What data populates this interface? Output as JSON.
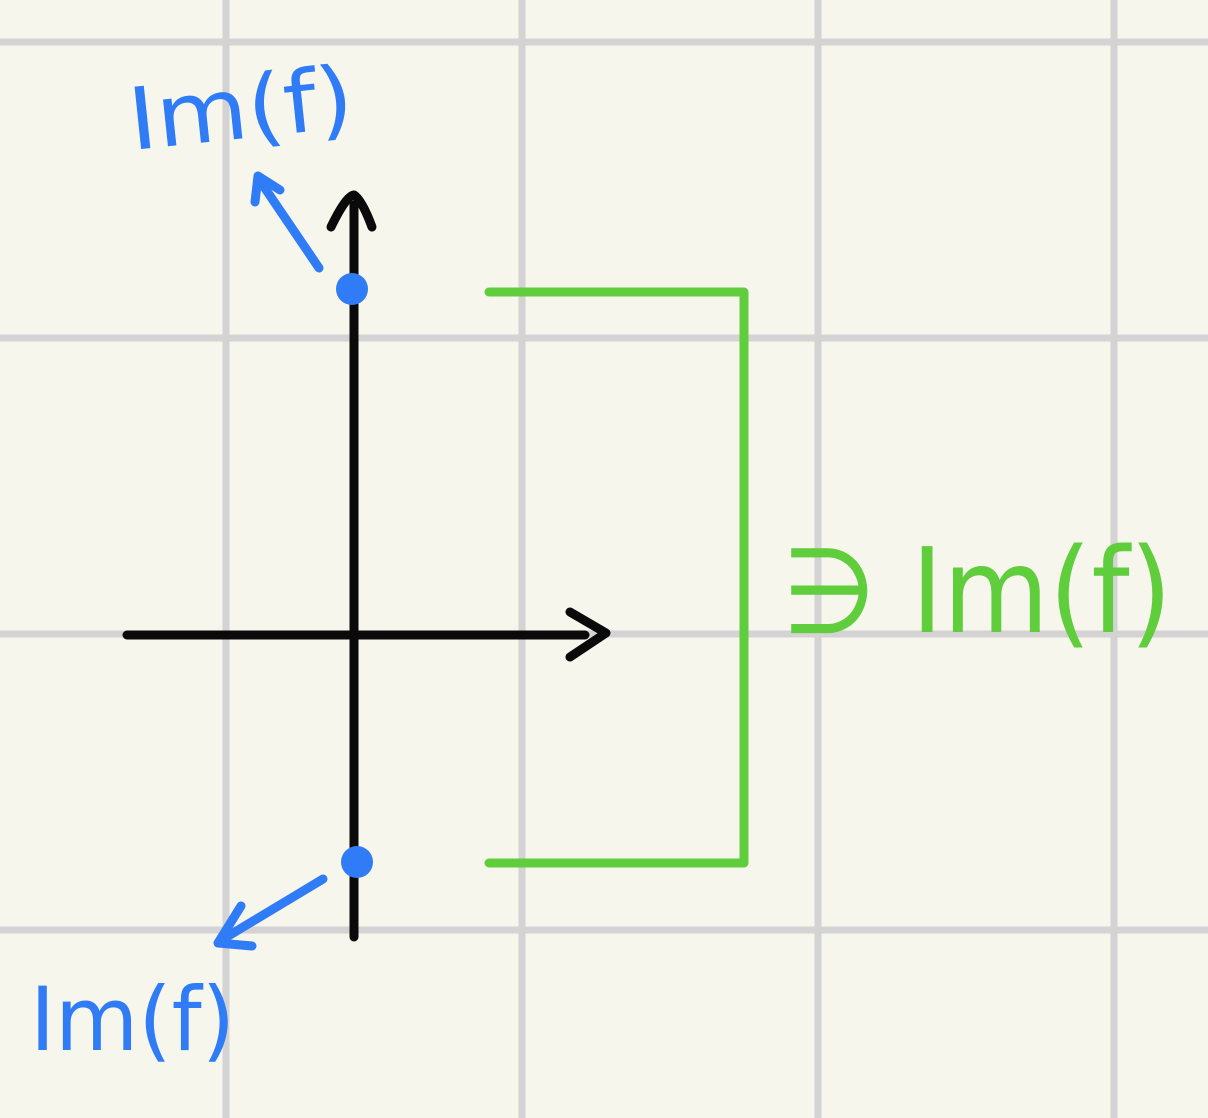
{
  "diagram": {
    "colors": {
      "background": "#f7f6ec",
      "grid": "#d3d3d3",
      "axes": "#0a0a0a",
      "points": "#2f7cf6",
      "bracket": "#5fcd3c"
    },
    "labels": {
      "top_point": "Im(f)",
      "bottom_point": "Im(f)",
      "bracket": "∋ Im(f)"
    }
  }
}
